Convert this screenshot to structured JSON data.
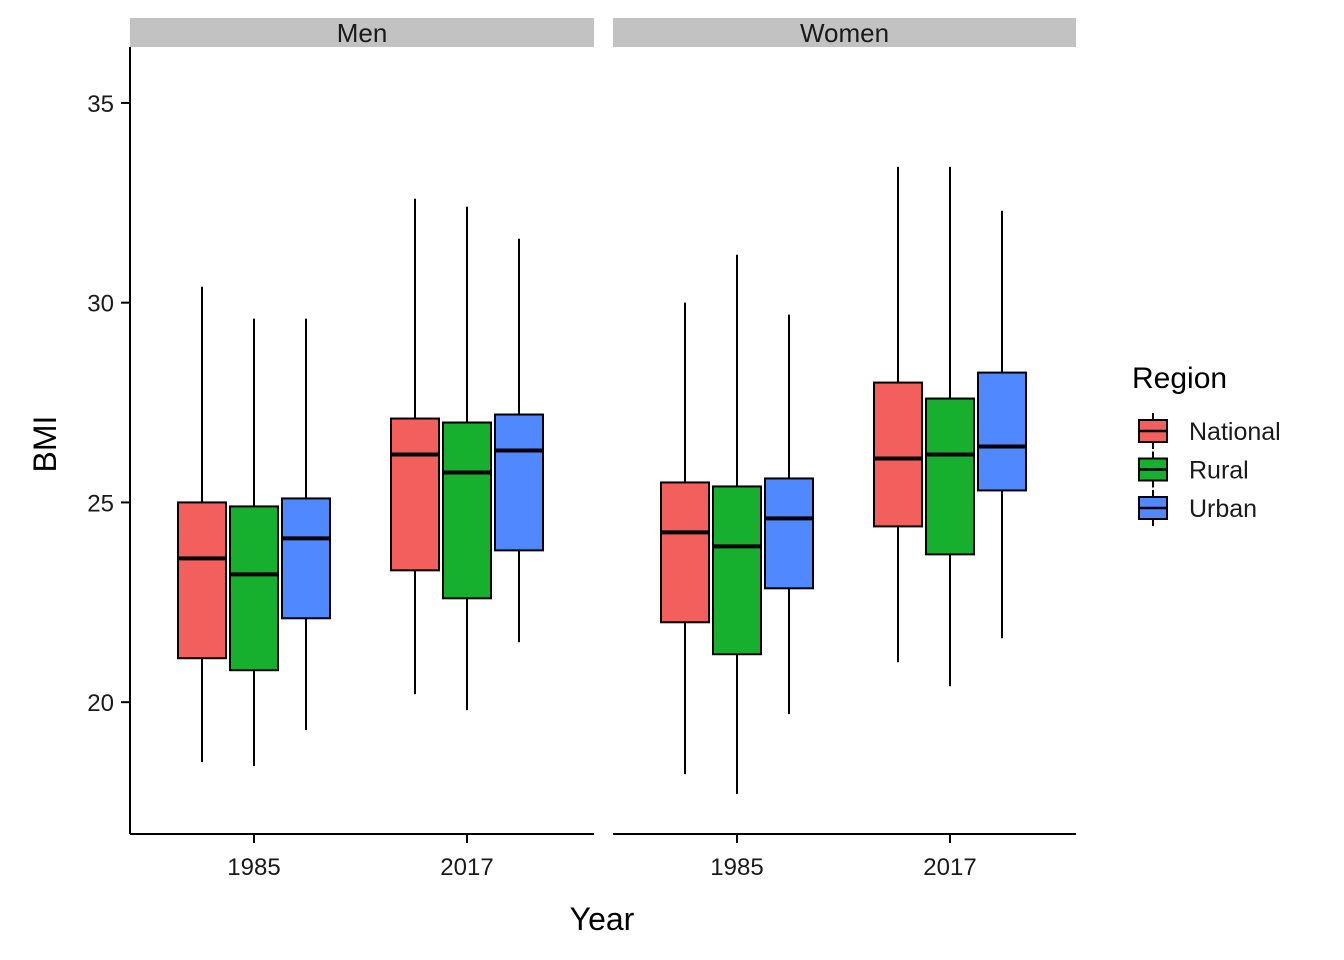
{
  "chart_data": {
    "type": "boxplot",
    "ylabel": "BMI",
    "xlabel": "Year",
    "ylim": [
      16.7,
      36.4
    ],
    "yticks": [
      20,
      25,
      30,
      35
    ],
    "categories": [
      "1985",
      "2017"
    ],
    "facets": [
      "Men",
      "Women"
    ],
    "legend": {
      "title": "Region",
      "position": "right",
      "entries": [
        "National",
        "Rural",
        "Urban"
      ]
    },
    "colors": {
      "National": "#F25F5C",
      "Rural": "#17AF2E",
      "Urban": "#5088FF"
    },
    "grid": false,
    "series": [
      {
        "name": "National",
        "boxes": {
          "Men": {
            "1985": {
              "min": 18.5,
              "q1": 21.1,
              "median": 23.6,
              "q3": 25.0,
              "max": 30.4
            },
            "2017": {
              "min": 20.2,
              "q1": 23.3,
              "median": 26.2,
              "q3": 27.1,
              "max": 32.6
            }
          },
          "Women": {
            "1985": {
              "min": 18.2,
              "q1": 22.0,
              "median": 24.25,
              "q3": 25.5,
              "max": 30.0
            },
            "2017": {
              "min": 21.0,
              "q1": 24.4,
              "median": 26.1,
              "q3": 28.0,
              "max": 33.4
            }
          }
        }
      },
      {
        "name": "Rural",
        "boxes": {
          "Men": {
            "1985": {
              "min": 18.4,
              "q1": 20.8,
              "median": 23.2,
              "q3": 24.9,
              "max": 29.6
            },
            "2017": {
              "min": 19.8,
              "q1": 22.6,
              "median": 25.75,
              "q3": 27.0,
              "max": 32.4
            }
          },
          "Women": {
            "1985": {
              "min": 17.7,
              "q1": 21.2,
              "median": 23.9,
              "q3": 25.4,
              "max": 31.2
            },
            "2017": {
              "min": 20.4,
              "q1": 23.7,
              "median": 26.2,
              "q3": 27.6,
              "max": 33.4
            }
          }
        }
      },
      {
        "name": "Urban",
        "boxes": {
          "Men": {
            "1985": {
              "min": 19.3,
              "q1": 22.1,
              "median": 24.1,
              "q3": 25.1,
              "max": 29.6
            },
            "2017": {
              "min": 21.5,
              "q1": 23.8,
              "median": 26.3,
              "q3": 27.2,
              "max": 31.6
            }
          },
          "Women": {
            "1985": {
              "min": 19.7,
              "q1": 22.85,
              "median": 24.6,
              "q3": 25.6,
              "max": 29.7
            },
            "2017": {
              "min": 21.6,
              "q1": 25.3,
              "median": 26.4,
              "q3": 28.25,
              "max": 32.3
            }
          }
        }
      }
    ]
  }
}
